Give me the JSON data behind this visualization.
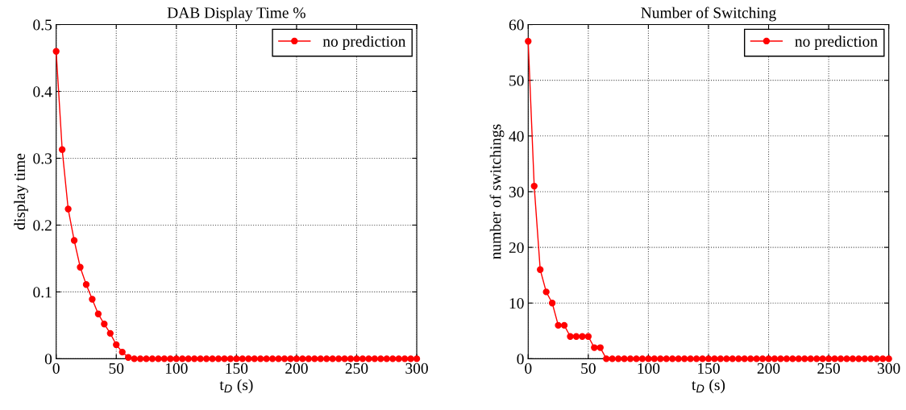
{
  "chart_data": [
    {
      "type": "line",
      "title": "DAB Display Time %",
      "xlabel": "t$_{D}$ (s)",
      "ylabel": "display time",
      "x": [
        0,
        5,
        10,
        15,
        20,
        25,
        30,
        35,
        40,
        45,
        50,
        55,
        60,
        65,
        70,
        75,
        80,
        85,
        90,
        95,
        100,
        105,
        110,
        115,
        120,
        125,
        130,
        135,
        140,
        145,
        150,
        155,
        160,
        165,
        170,
        175,
        180,
        185,
        190,
        195,
        200,
        205,
        210,
        215,
        220,
        225,
        230,
        235,
        240,
        245,
        250,
        255,
        260,
        265,
        270,
        275,
        280,
        285,
        290,
        295,
        300
      ],
      "series": [
        {
          "name": "no prediction",
          "color": "#ff0000",
          "values": [
            0.46,
            0.313,
            0.224,
            0.177,
            0.137,
            0.111,
            0.089,
            0.067,
            0.052,
            0.038,
            0.021,
            0.01,
            0.002,
            0,
            0,
            0,
            0,
            0,
            0,
            0,
            0,
            0,
            0,
            0,
            0,
            0,
            0,
            0,
            0,
            0,
            0,
            0,
            0,
            0,
            0,
            0,
            0,
            0,
            0,
            0,
            0,
            0,
            0,
            0,
            0,
            0,
            0,
            0,
            0,
            0,
            0,
            0,
            0,
            0,
            0,
            0,
            0,
            0,
            0,
            0,
            0
          ]
        }
      ],
      "xlim": [
        0,
        300
      ],
      "xticks": [
        0,
        50,
        100,
        150,
        200,
        250,
        300
      ],
      "ylim": [
        0,
        0.5
      ],
      "yticks": [
        0,
        0.1,
        0.2,
        0.3,
        0.4,
        0.5
      ],
      "grid": true,
      "legend": "top right",
      "marker": "circle",
      "line_style": "solid"
    },
    {
      "type": "line",
      "title": "Number of Switching",
      "xlabel": "t$_{D}$ (s)",
      "ylabel": "number of switchings",
      "x": [
        0,
        5,
        10,
        15,
        20,
        25,
        30,
        35,
        40,
        45,
        50,
        55,
        60,
        65,
        70,
        75,
        80,
        85,
        90,
        95,
        100,
        105,
        110,
        115,
        120,
        125,
        130,
        135,
        140,
        145,
        150,
        155,
        160,
        165,
        170,
        175,
        180,
        185,
        190,
        195,
        200,
        205,
        210,
        215,
        220,
        225,
        230,
        235,
        240,
        245,
        250,
        255,
        260,
        265,
        270,
        275,
        280,
        285,
        290,
        295,
        300
      ],
      "series": [
        {
          "name": "no prediction",
          "color": "#ff0000",
          "values": [
            57,
            31,
            16,
            12,
            10,
            6,
            6,
            4,
            4,
            4,
            4,
            2,
            2,
            0,
            0,
            0,
            0,
            0,
            0,
            0,
            0,
            0,
            0,
            0,
            0,
            0,
            0,
            0,
            0,
            0,
            0,
            0,
            0,
            0,
            0,
            0,
            0,
            0,
            0,
            0,
            0,
            0,
            0,
            0,
            0,
            0,
            0,
            0,
            0,
            0,
            0,
            0,
            0,
            0,
            0,
            0,
            0,
            0,
            0,
            0,
            0
          ]
        }
      ],
      "xlim": [
        0,
        300
      ],
      "xticks": [
        0,
        50,
        100,
        150,
        200,
        250,
        300
      ],
      "ylim": [
        0,
        60
      ],
      "yticks": [
        0,
        10,
        20,
        30,
        40,
        50,
        60
      ],
      "grid": true,
      "legend": "top right",
      "marker": "circle",
      "line_style": "solid"
    }
  ]
}
